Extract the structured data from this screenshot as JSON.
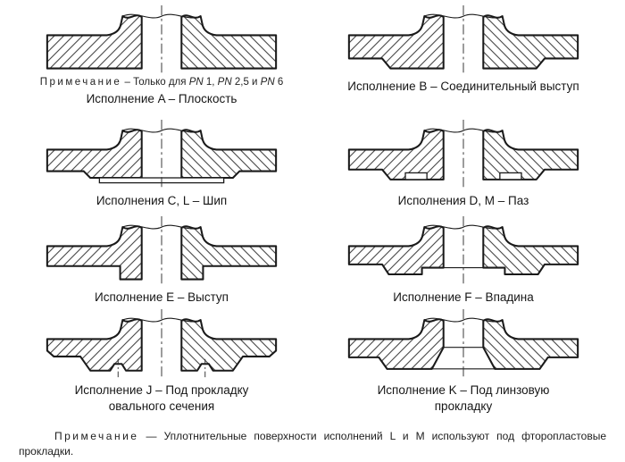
{
  "figures": [
    {
      "id": "A",
      "caption": "Исполнение A – Плоскость",
      "note_parts": [
        {
          "text": "Примечание",
          "style": "spaced"
        },
        {
          "text": " – Только для ",
          "style": "plain"
        },
        {
          "text": "PN",
          "style": "italic"
        },
        {
          "text": " 1, ",
          "style": "plain"
        },
        {
          "text": "PN",
          "style": "italic"
        },
        {
          "text": " 2,5 и ",
          "style": "plain"
        },
        {
          "text": "PN",
          "style": "italic"
        },
        {
          "text": " 6",
          "style": "plain"
        }
      ]
    },
    {
      "id": "B",
      "caption": "Исполнение B – Соединительный выступ"
    },
    {
      "id": "CL",
      "caption": "Исполнения C, L – Шип"
    },
    {
      "id": "DM",
      "caption": "Исполнения D, M – Паз"
    },
    {
      "id": "E",
      "caption": "Исполнение E – Выступ"
    },
    {
      "id": "F",
      "caption": "Исполнение F – Впадина"
    },
    {
      "id": "J",
      "caption": "Исполнение J – Под прокладку\nовального сечения"
    },
    {
      "id": "K",
      "caption": "Исполнение K – Под линзовую\nпрокладку"
    }
  ],
  "footnote": {
    "label": "Примечание",
    "text": "— Уплотнительные поверхности исполнений L и M используют под фторопластовые прокладки."
  },
  "colors": {
    "line": "#1a1a1a",
    "hatch": "#3f3f3f",
    "centerline": "#2a2a2a",
    "background": "#ffffff"
  }
}
